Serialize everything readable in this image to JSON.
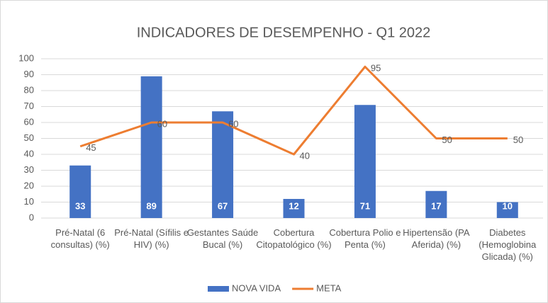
{
  "chart_data": {
    "type": "bar",
    "title": "INDICADORES DE DESEMPENHO - Q1 2022",
    "categories": [
      "Pré-Natal (6 consultas) (%)",
      "Pré-Natal (Sífilis e HIV) (%)",
      "Gestantes Saúde Bucal (%)",
      "Cobertura Citopatológico (%)",
      "Cobertura Polio e Penta (%)",
      "Hipertensão (PA Aferida) (%)",
      "Diabetes (Hemoglobina Glicada) (%)"
    ],
    "series": [
      {
        "name": "NOVA VIDA",
        "type": "bar",
        "color": "#4472c4",
        "values": [
          33,
          89,
          67,
          12,
          71,
          17,
          10
        ]
      },
      {
        "name": "META",
        "type": "line",
        "color": "#ed7d31",
        "values": [
          45,
          60,
          60,
          40,
          95,
          50,
          50
        ]
      }
    ],
    "ylim": [
      0,
      100
    ],
    "yticks": [
      0,
      10,
      20,
      30,
      40,
      50,
      60,
      70,
      80,
      90,
      100
    ],
    "grid": true,
    "legend": "bottom"
  }
}
